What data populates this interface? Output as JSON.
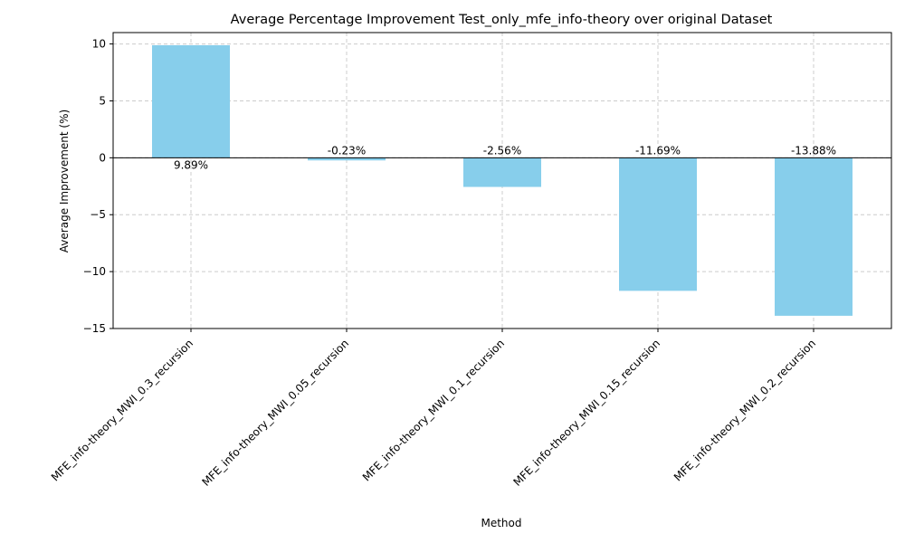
{
  "chart_data": {
    "type": "bar",
    "title": "Average Percentage Improvement Test_only_mfe_info-theory over original Dataset",
    "xlabel": "Method",
    "ylabel": "Average Improvement (%)",
    "categories": [
      "MFE_info-theory_MWI_0.3_recursion",
      "MFE_info-theory_MWI_0.05_recursion",
      "MFE_info-theory_MWI_0.1_recursion",
      "MFE_info-theory_MWI_0.15_recursion",
      "MFE_info-theory_MWI_0.2_recursion"
    ],
    "values": [
      9.89,
      -0.23,
      -2.56,
      -11.69,
      -13.88
    ],
    "data_labels": [
      "9.89%",
      "-0.23%",
      "-2.56%",
      "-11.69%",
      "-13.88%"
    ],
    "yticks": [
      10,
      5,
      0,
      -5,
      -10,
      -15
    ],
    "ytick_labels": [
      "10",
      "5",
      "0",
      "−5",
      "−10",
      "−15"
    ],
    "ylim": [
      -15,
      11
    ],
    "grid": true,
    "zero_line": true,
    "bar_color": "#87ceeb",
    "grid_color": "#cccccc"
  }
}
